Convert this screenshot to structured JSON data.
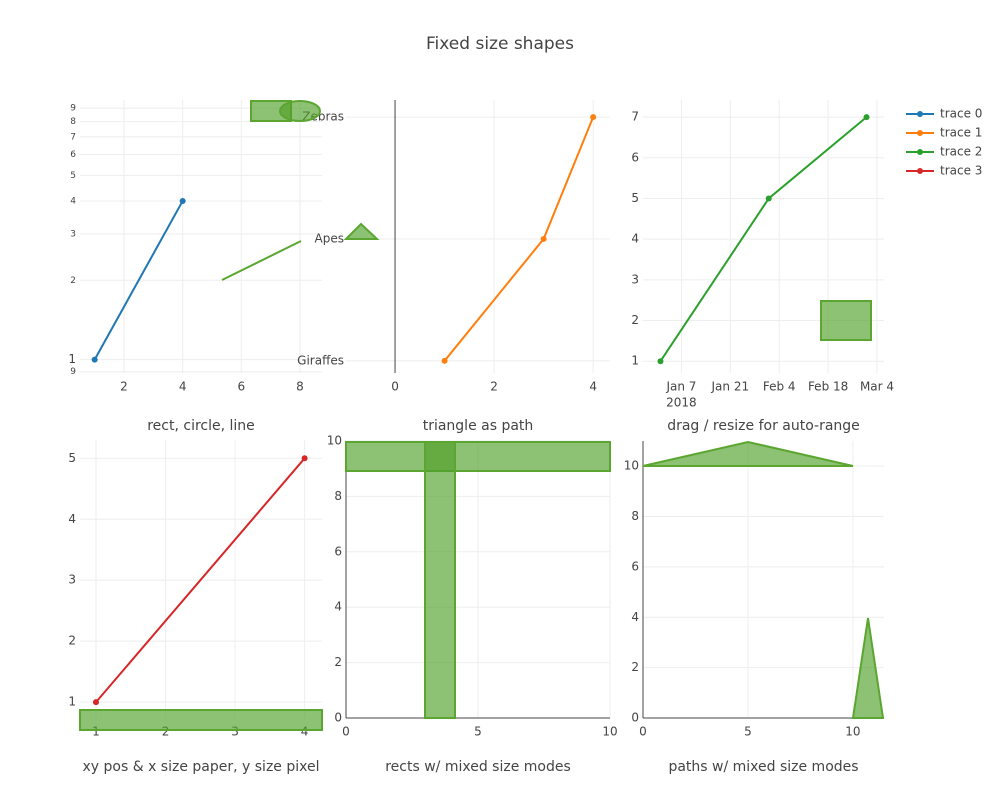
{
  "title": "Fixed size shapes",
  "chart_data": [
    {
      "type": "line",
      "title": "rect, circle, line",
      "x": [
        1,
        4
      ],
      "series": [
        {
          "name": "trace 0",
          "color": "#1f77b4",
          "values": [
            1,
            4
          ]
        }
      ],
      "xlim": [
        0.5,
        8.75
      ],
      "ylim": [
        0.89,
        9.66
      ],
      "ylog": true,
      "xticks": [
        2,
        4,
        6,
        8
      ],
      "yticks": [
        {
          "value": 0.9,
          "label": "9"
        },
        1,
        2,
        3,
        4,
        5,
        6,
        7,
        8,
        9
      ],
      "grid": true
    },
    {
      "type": "line",
      "orientation": "h",
      "title": "triangle as path",
      "categories": [
        "Giraffes",
        "Apes",
        "Zebras"
      ],
      "series": [
        {
          "name": "trace 1",
          "color": "#ff7f0e",
          "values": [
            1,
            3,
            4
          ]
        }
      ],
      "xlim": [
        -0.99,
        4.34
      ],
      "xticks": [
        0,
        2,
        4
      ],
      "grid": true,
      "zeroline": true
    },
    {
      "type": "line",
      "title": "drag / resize for auto-range",
      "x": [
        "2018-01-01",
        "2018-02-01",
        "2018-03-01"
      ],
      "xdate": true,
      "series": [
        {
          "name": "trace 2",
          "color": "#2ca02c",
          "values": [
            1,
            5,
            7
          ]
        }
      ],
      "xlim": [
        "2017-12-27",
        "2018-03-06"
      ],
      "xticks": [
        {
          "value": "2018-01-07",
          "label": "Jan 7"
        },
        {
          "value": "2018-01-21",
          "label": "Jan 21"
        },
        {
          "value": "2018-02-04",
          "label": "Feb 4"
        },
        {
          "value": "2018-02-18",
          "label": "Feb 18"
        },
        {
          "value": "2018-03-04",
          "label": "Mar 4"
        }
      ],
      "x_year_label": "2018",
      "ylim": [
        0.71,
        7.42
      ],
      "yticks": [
        1,
        2,
        3,
        4,
        5,
        6,
        7
      ],
      "grid": true
    },
    {
      "type": "line",
      "title": "xy pos & x size paper, y size pixel",
      "x": [
        1,
        4
      ],
      "series": [
        {
          "name": "trace 3",
          "color": "#d62728",
          "values": [
            1,
            5
          ]
        }
      ],
      "xlim": [
        0.77,
        4.25
      ],
      "ylim": [
        0.74,
        5.3
      ],
      "xticks": [
        1,
        2,
        3,
        4
      ],
      "yticks": [
        1,
        2,
        3,
        4,
        5
      ],
      "grid": true
    },
    {
      "type": "line",
      "title": "rects w/ mixed size modes",
      "series": [],
      "xlim": [
        0,
        10
      ],
      "ylim": [
        0,
        10
      ],
      "xticks": [
        0,
        5,
        10
      ],
      "yticks": [
        0,
        2,
        4,
        6,
        8,
        10
      ],
      "grid": true,
      "zeroline": true
    },
    {
      "type": "line",
      "title": "paths w/ mixed size modes",
      "series": [],
      "xlim": [
        0,
        11.48
      ],
      "ylim": [
        0,
        11
      ],
      "xticks": [
        0,
        5,
        10
      ],
      "yticks": [
        0,
        2,
        4,
        6,
        8,
        10
      ],
      "grid": true,
      "zeroline": true
    }
  ]
}
